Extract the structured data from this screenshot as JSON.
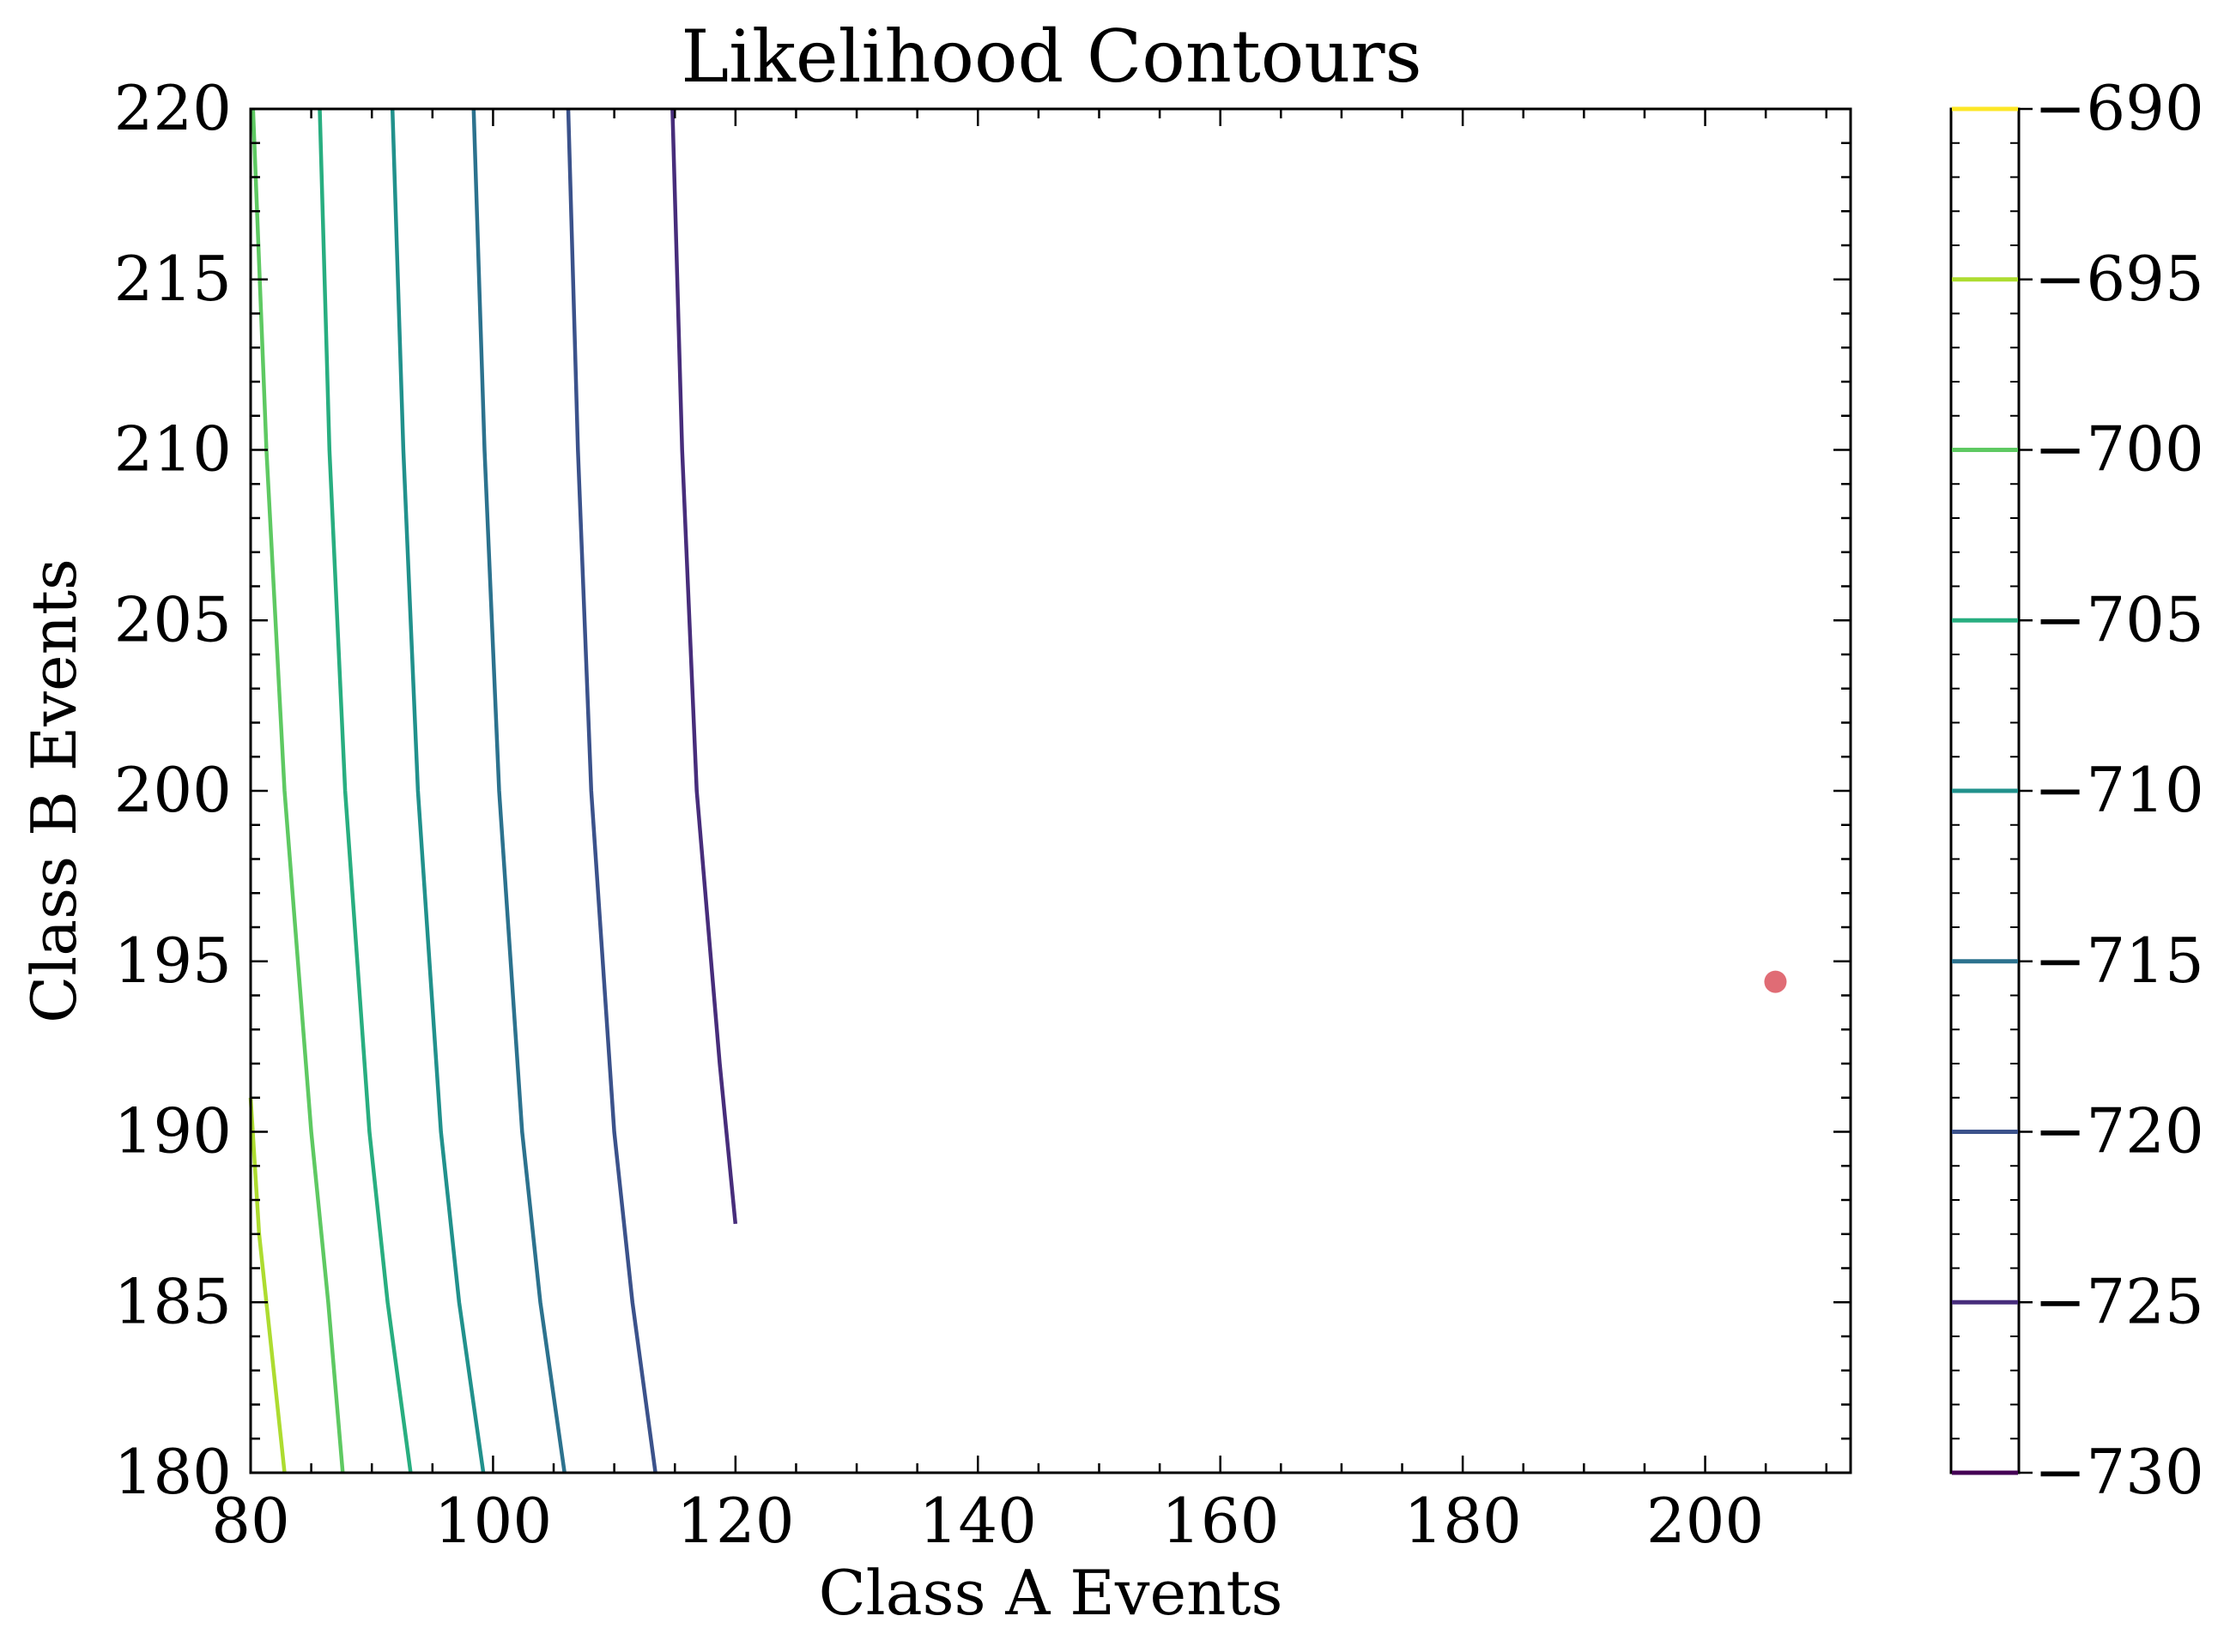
{
  "chart_data": {
    "type": "contour",
    "title": "Likelihood Contours",
    "xlabel": "Class A Events",
    "ylabel": "Class B Events",
    "xlim": [
      80,
      212
    ],
    "ylim": [
      180,
      220
    ],
    "xticks": [
      80,
      100,
      120,
      140,
      160,
      180,
      200
    ],
    "yticks": [
      180,
      185,
      190,
      195,
      200,
      205,
      210,
      215,
      220
    ],
    "grid": false,
    "colormap": "viridis",
    "colorbar": {
      "ticks": [
        -690,
        -695,
        -700,
        -705,
        -710,
        -715,
        -720,
        -725,
        -730
      ],
      "tick_labels": [
        "−690",
        "−695",
        "−700",
        "−705",
        "−710",
        "−715",
        "−720",
        "−725",
        "−730"
      ],
      "range": [
        -730,
        -690
      ]
    },
    "contours": [
      {
        "level": -695,
        "color": "#addc30",
        "points": [
          [
            80.0,
            191.0
          ],
          [
            80.7,
            187.0
          ],
          [
            81.6,
            184.0
          ],
          [
            82.5,
            181.0
          ],
          [
            82.8,
            180.0
          ]
        ]
      },
      {
        "level": -700,
        "color": "#5ec962",
        "points": [
          [
            80.2,
            220.0
          ],
          [
            81.3,
            210.0
          ],
          [
            82.8,
            200.0
          ],
          [
            85.0,
            190.0
          ],
          [
            86.4,
            185.0
          ],
          [
            87.6,
            180.0
          ]
        ]
      },
      {
        "level": -705,
        "color": "#28ae80",
        "points": [
          [
            85.7,
            220.0
          ],
          [
            86.5,
            210.0
          ],
          [
            87.8,
            200.0
          ],
          [
            89.8,
            190.0
          ],
          [
            91.3,
            185.0
          ],
          [
            93.2,
            180.0
          ]
        ]
      },
      {
        "level": -710,
        "color": "#21918c",
        "points": [
          [
            91.7,
            220.0
          ],
          [
            92.6,
            210.0
          ],
          [
            93.8,
            200.0
          ],
          [
            95.7,
            190.0
          ],
          [
            97.2,
            185.0
          ],
          [
            99.2,
            180.0
          ]
        ]
      },
      {
        "level": -715,
        "color": "#2c728e",
        "points": [
          [
            98.4,
            220.0
          ],
          [
            99.3,
            210.0
          ],
          [
            100.5,
            200.0
          ],
          [
            102.4,
            190.0
          ],
          [
            103.9,
            185.0
          ],
          [
            105.9,
            180.0
          ]
        ]
      },
      {
        "level": -720,
        "color": "#3b528b",
        "points": [
          [
            106.2,
            220.0
          ],
          [
            107.0,
            210.0
          ],
          [
            108.1,
            200.0
          ],
          [
            110.0,
            190.0
          ],
          [
            111.5,
            185.0
          ],
          [
            113.4,
            180.0
          ]
        ]
      },
      {
        "level": -725,
        "color": "#472d7b",
        "points": [
          [
            114.8,
            220.0
          ],
          [
            115.6,
            210.0
          ],
          [
            116.8,
            200.0
          ],
          [
            118.7,
            192.0
          ],
          [
            120.0,
            187.3
          ]
        ]
      }
    ],
    "marker": {
      "x": 205.8,
      "y": 194.4,
      "color": "#e06c75"
    }
  }
}
